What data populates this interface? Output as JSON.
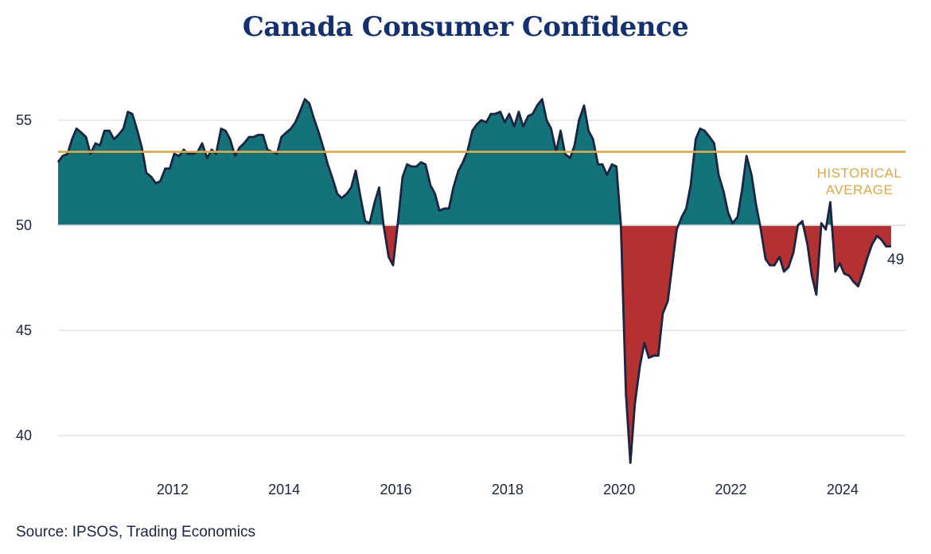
{
  "chart_data": {
    "type": "area",
    "title": "Canada Consumer Confidence",
    "source": "Source: IPSOS, Trading Economics",
    "baseline": 50,
    "historical_average": 53.5,
    "historical_average_label": [
      "HISTORICAL",
      "AVERAGE"
    ],
    "last_value_label": "49",
    "ylim": [
      38,
      57.5
    ],
    "xlim": [
      2010.0,
      2024.95
    ],
    "y_ticks": [
      40,
      45,
      50,
      55
    ],
    "x_ticks": [
      2012,
      2014,
      2016,
      2018,
      2020,
      2022,
      2024
    ],
    "grid": true,
    "colors": {
      "above": "#13727a",
      "below": "#b53031",
      "line": "#1b2440",
      "average": "#d8aa4c",
      "grid": "#dcdcdc",
      "title": "#14306e"
    },
    "series": [
      {
        "x": [
          2010.0,
          2010.08,
          2010.17,
          2010.25,
          2010.33,
          2010.42,
          2010.5,
          2010.58,
          2010.67,
          2010.75,
          2010.83,
          2010.92,
          2011.0,
          2011.08,
          2011.17,
          2011.25,
          2011.33,
          2011.42,
          2011.5,
          2011.58,
          2011.67,
          2011.75,
          2011.83,
          2011.92,
          2012.0,
          2012.08,
          2012.17,
          2012.25,
          2012.33,
          2012.42,
          2012.5,
          2012.58,
          2012.67,
          2012.75,
          2012.83,
          2012.92,
          2013.0,
          2013.08,
          2013.17,
          2013.25,
          2013.33,
          2013.42,
          2013.5,
          2013.58,
          2013.67,
          2013.75,
          2013.83,
          2013.92,
          2014.0,
          2014.08,
          2014.17,
          2014.25,
          2014.33,
          2014.42,
          2014.5,
          2014.58,
          2014.67,
          2014.75,
          2014.83,
          2014.92,
          2015.0,
          2015.08,
          2015.17,
          2015.25,
          2015.33,
          2015.42,
          2015.5,
          2015.58,
          2015.67,
          2015.75,
          2015.83,
          2015.92,
          2016.0,
          2016.08,
          2016.17,
          2016.25,
          2016.33,
          2016.42,
          2016.5,
          2016.58,
          2016.67,
          2016.75,
          2016.83,
          2016.92,
          2017.0,
          2017.08,
          2017.17,
          2017.25,
          2017.33,
          2017.42,
          2017.5,
          2017.58,
          2017.67,
          2017.75,
          2017.83,
          2017.92,
          2018.0,
          2018.08,
          2018.17,
          2018.25,
          2018.33,
          2018.42,
          2018.5,
          2018.58,
          2018.67,
          2018.75,
          2018.83,
          2018.92,
          2019.0,
          2019.08,
          2019.17,
          2019.25,
          2019.33,
          2019.42,
          2019.5,
          2019.58,
          2019.67,
          2019.75,
          2019.83,
          2019.92,
          2020.0,
          2020.08,
          2020.17,
          2020.25,
          2020.33,
          2020.42,
          2020.5,
          2020.58,
          2020.67,
          2020.75,
          2020.83,
          2020.92,
          2021.0,
          2021.08,
          2021.17,
          2021.25,
          2021.33,
          2021.42,
          2021.5,
          2021.58,
          2021.67,
          2021.75,
          2021.83,
          2021.92,
          2022.0,
          2022.08,
          2022.17,
          2022.25,
          2022.33,
          2022.42,
          2022.5,
          2022.58,
          2022.67,
          2022.75,
          2022.83,
          2022.92,
          2023.0,
          2023.08,
          2023.17,
          2023.25,
          2023.33,
          2023.42,
          2023.5,
          2023.58,
          2023.67,
          2023.75,
          2023.83,
          2023.92,
          2024.0,
          2024.08,
          2024.17,
          2024.25,
          2024.33,
          2024.42,
          2024.5,
          2024.58,
          2024.67,
          2024.75,
          2024.83,
          2024.92
        ],
        "y": [
          53.0,
          53.3,
          53.4,
          54.1,
          54.6,
          54.4,
          54.2,
          53.4,
          53.9,
          53.8,
          54.5,
          54.5,
          54.1,
          54.3,
          54.6,
          55.4,
          55.3,
          54.5,
          53.7,
          52.5,
          52.3,
          52.0,
          52.1,
          52.7,
          52.7,
          53.4,
          53.3,
          53.6,
          53.4,
          53.4,
          53.5,
          53.9,
          53.2,
          53.6,
          53.4,
          54.6,
          54.5,
          54.1,
          53.3,
          53.7,
          53.9,
          54.2,
          54.2,
          54.3,
          54.3,
          53.6,
          53.5,
          53.4,
          54.2,
          54.4,
          54.6,
          54.9,
          55.4,
          56.0,
          55.8,
          55.1,
          54.4,
          53.7,
          52.9,
          52.2,
          51.5,
          51.3,
          51.5,
          51.8,
          52.6,
          51.3,
          50.2,
          50.1,
          51.1,
          51.8,
          50.0,
          48.5,
          48.1,
          50.0,
          52.3,
          52.9,
          52.8,
          52.8,
          53.0,
          52.9,
          51.9,
          51.5,
          50.7,
          50.8,
          50.8,
          51.8,
          52.6,
          53.0,
          53.5,
          54.5,
          54.8,
          55.0,
          54.9,
          55.3,
          55.3,
          55.4,
          54.9,
          55.3,
          54.7,
          55.4,
          54.7,
          55.2,
          55.3,
          55.7,
          56.0,
          55.0,
          54.6,
          53.5,
          54.5,
          53.4,
          53.2,
          53.8,
          55.0,
          55.7,
          54.5,
          54.1,
          52.9,
          52.9,
          52.4,
          52.9,
          52.8,
          50.0,
          42.0,
          38.7,
          41.5,
          43.3,
          44.4,
          43.7,
          43.8,
          43.8,
          45.8,
          46.4,
          48.1,
          49.8,
          50.4,
          50.8,
          51.9,
          54.1,
          54.6,
          54.5,
          54.2,
          53.9,
          52.4,
          51.6,
          50.6,
          50.1,
          50.4,
          51.7,
          53.3,
          52.4,
          51.0,
          49.9,
          48.4,
          48.1,
          48.1,
          48.5,
          47.8,
          48.0,
          48.7,
          50.0,
          50.2,
          49.1,
          47.6,
          46.7,
          50.1,
          49.8,
          51.1,
          47.8,
          48.2,
          47.7,
          47.6,
          47.3,
          47.1,
          47.8,
          48.5,
          49.1,
          49.5,
          49.3,
          49.0,
          49.0
        ]
      }
    ]
  }
}
